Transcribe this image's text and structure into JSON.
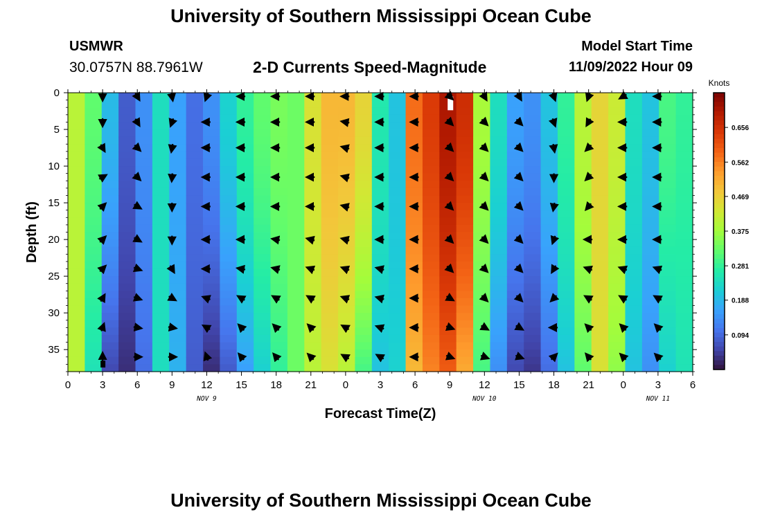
{
  "header": {
    "title": "University of Southern Mississippi Ocean Cube",
    "station": "USMWR",
    "coords": "30.0757N  88.7961W",
    "subtitle": "2-D Currents Speed-Magnitude",
    "start_label": "Model Start Time",
    "start_value": "11/09/2022 Hour 09"
  },
  "footer": {
    "title": "University of Southern Mississippi Ocean Cube"
  },
  "colors": {
    "scale": [
      "#30123b",
      "#4145ab",
      "#4675ed",
      "#39a2fc",
      "#1bcfd4",
      "#24eca6",
      "#61fc6c",
      "#a4fc3b",
      "#d1e834",
      "#f3c63a",
      "#fe9b2d",
      "#f36315",
      "#d93806",
      "#b11901",
      "#7a0402"
    ],
    "arrow": "#000000",
    "marker": "#ffffff"
  },
  "chart_data": {
    "type": "heatmap",
    "title": "2-D Currents Speed-Magnitude",
    "xlabel": "Forecast Time(Z)",
    "ylabel": "Depth (ft)",
    "x_ticks": [
      "0",
      "3",
      "6",
      "9",
      "12",
      "15",
      "18",
      "21",
      "0",
      "3",
      "6",
      "9",
      "12",
      "15",
      "18",
      "21",
      "0",
      "3",
      "6"
    ],
    "x_range_hours": [
      0,
      54
    ],
    "y_ticks": [
      0,
      5,
      10,
      15,
      20,
      25,
      30,
      35
    ],
    "y_range": [
      0,
      38
    ],
    "y_reversed": true,
    "date_labels": [
      {
        "label": "NOV 9",
        "hour": 12
      },
      {
        "label": "NOV 10",
        "hour": 36
      },
      {
        "label": "NOV 11",
        "hour": 51
      }
    ],
    "colorbar": {
      "title": "Knots",
      "ticks": [
        "0.094",
        "0.188",
        "0.281",
        "0.375",
        "0.469",
        "0.562",
        "0.656"
      ],
      "tick_values": [
        0.094,
        0.188,
        0.281,
        0.375,
        0.469,
        0.562,
        0.656
      ],
      "range": [
        0,
        0.75
      ]
    },
    "surface_speed_knots": [
      0.4,
      0.32,
      0.19,
      0.08,
      0.14,
      0.24,
      0.16,
      0.1,
      0.14,
      0.22,
      0.28,
      0.32,
      0.34,
      0.33,
      0.44,
      0.5,
      0.5,
      0.46,
      0.26,
      0.2,
      0.58,
      0.64,
      0.7,
      0.66,
      0.38,
      0.24,
      0.16,
      0.14,
      0.2,
      0.28,
      0.4,
      0.46,
      0.42,
      0.24,
      0.2,
      0.3,
      0.28
    ],
    "bottom_speed_knots": [
      0.4,
      0.25,
      0.06,
      0.03,
      0.1,
      0.24,
      0.18,
      0.08,
      0.03,
      0.08,
      0.16,
      0.22,
      0.28,
      0.33,
      0.4,
      0.44,
      0.4,
      0.3,
      0.2,
      0.22,
      0.5,
      0.56,
      0.6,
      0.52,
      0.3,
      0.14,
      0.06,
      0.04,
      0.1,
      0.2,
      0.32,
      0.44,
      0.36,
      0.2,
      0.14,
      0.22,
      0.25
    ],
    "arrow_depths_ft": [
      0.5,
      4,
      7.5,
      11.5,
      15.5,
      20,
      24,
      28,
      32,
      36
    ],
    "arrow_hours": [
      3,
      6,
      9,
      12,
      15,
      18,
      21,
      24,
      27,
      30,
      33,
      36,
      39,
      42,
      45,
      48,
      51
    ],
    "arrow_directions_deg": [
      [
        180,
        150,
        170,
        200,
        270,
        270,
        270,
        270,
        270,
        270,
        135,
        150,
        150,
        160,
        200,
        240,
        270
      ],
      [
        180,
        150,
        200,
        270,
        270,
        270,
        270,
        280,
        270,
        270,
        135,
        135,
        135,
        160,
        210,
        270,
        270
      ],
      [
        150,
        135,
        190,
        270,
        270,
        270,
        270,
        285,
        270,
        270,
        135,
        135,
        135,
        170,
        225,
        270,
        270
      ],
      [
        60,
        135,
        185,
        270,
        270,
        270,
        270,
        285,
        270,
        270,
        135,
        135,
        135,
        180,
        225,
        270,
        270
      ],
      [
        45,
        120,
        180,
        270,
        270,
        270,
        270,
        285,
        270,
        270,
        135,
        135,
        135,
        190,
        220,
        270,
        270
      ],
      [
        45,
        120,
        180,
        270,
        270,
        280,
        285,
        285,
        270,
        270,
        135,
        135,
        135,
        200,
        270,
        270,
        270
      ],
      [
        45,
        110,
        150,
        270,
        280,
        285,
        290,
        290,
        285,
        270,
        135,
        135,
        135,
        210,
        290,
        290,
        290
      ],
      [
        30,
        110,
        120,
        290,
        300,
        300,
        300,
        290,
        285,
        270,
        120,
        135,
        135,
        225,
        300,
        300,
        300
      ],
      [
        20,
        100,
        100,
        300,
        315,
        315,
        315,
        300,
        290,
        270,
        110,
        120,
        120,
        270,
        315,
        315,
        315
      ],
      [
        0,
        90,
        90,
        340,
        320,
        320,
        315,
        300,
        300,
        270,
        110,
        110,
        110,
        45,
        320,
        315,
        315
      ]
    ]
  }
}
